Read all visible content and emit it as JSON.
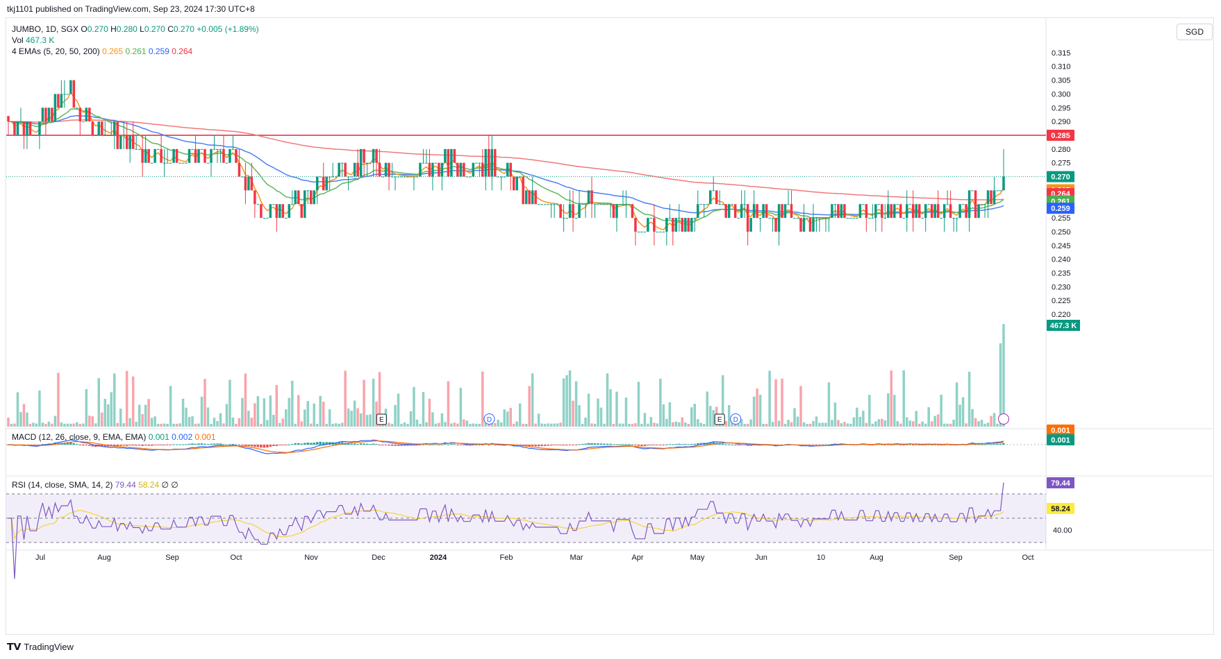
{
  "header": {
    "text": "tkj1101 published on TradingView.com, Sep 23, 2024 17:30 UTC+8"
  },
  "legend": {
    "symbol": "JUMBO, 1D, SGX",
    "o_label": "O",
    "o": "0.270",
    "h_label": "H",
    "h": "0.280",
    "l_label": "L",
    "l": "0.270",
    "c_label": "C",
    "c": "0.270",
    "change": "+0.005 (+1.89%)",
    "vol_label": "Vol",
    "vol": "467.3 K",
    "ema_label": "4 EMAs (5, 20, 50, 200)",
    "ema5": "0.265",
    "ema20": "0.261",
    "ema50": "0.259",
    "ema200": "0.264"
  },
  "currency": "SGD",
  "macd_legend": {
    "label": "MACD (12, 26, close, 9, EMA, EMA)",
    "v1": "0.001",
    "v2": "0.002",
    "v3": "0.001"
  },
  "rsi_legend": {
    "label": "RSI (14, close, SMA, 14, 2)",
    "v1": "79.44",
    "v2": "58.24",
    "v3": "∅",
    "v4": "∅"
  },
  "footer": {
    "brand": "TradingView",
    "logo": "tv-logo-icon"
  },
  "colors": {
    "up": "#089981",
    "down": "#f23645",
    "ema5": "#f7931a",
    "ema20": "#5cb85c",
    "ema50": "#4d7ff0",
    "ema200": "#f27878",
    "resistance": "#e0253e",
    "rsi": "#7e57c2",
    "rsi_ma": "#f5d33a"
  },
  "chart_data": {
    "type": "candlestick",
    "price_axis_ticks": [
      "0.315",
      "0.310",
      "0.305",
      "0.300",
      "0.295",
      "0.290",
      "0.285",
      "0.280",
      "0.275",
      "0.270",
      "0.265",
      "0.260",
      "0.255",
      "0.250",
      "0.245",
      "0.240",
      "0.235",
      "0.230",
      "0.225",
      "0.220"
    ],
    "price_range": [
      0.2165,
      0.319
    ],
    "time_axis": [
      "Jul",
      "Aug",
      "Sep",
      "Oct",
      "Nov",
      "Dec",
      "2024",
      "Feb",
      "Mar",
      "Apr",
      "May",
      "Jun",
      "10",
      "Aug",
      "Sep",
      "Oct"
    ],
    "resistance_level": 0.285,
    "last_price": 0.27,
    "price_badges": [
      {
        "text": "0.285",
        "value": 0.285,
        "color": "#f23645"
      },
      {
        "text": "0.270",
        "value": 0.27,
        "color": "#089981"
      },
      {
        "text": "0.265",
        "value": 0.2652,
        "color": "#f7931a"
      },
      {
        "text": "0.264",
        "value": 0.2638,
        "color": "#f23645"
      },
      {
        "text": "0.261",
        "value": 0.2611,
        "color": "#4caf50"
      },
      {
        "text": "0.259",
        "value": 0.2585,
        "color": "#2962ff"
      }
    ],
    "volume_badge": "467.3 K",
    "events": [
      {
        "label": "E",
        "month_index": 5.05
      },
      {
        "label": "D",
        "month_index": 6.75
      },
      {
        "label": "E",
        "month_index": 10.35
      },
      {
        "label": "D",
        "month_index": 10.6
      }
    ],
    "macd_badges": [
      "0.001",
      "0.001"
    ],
    "rsi_axis": [
      "40.00"
    ],
    "rsi_badges": [
      "79.44",
      "58.24"
    ]
  }
}
